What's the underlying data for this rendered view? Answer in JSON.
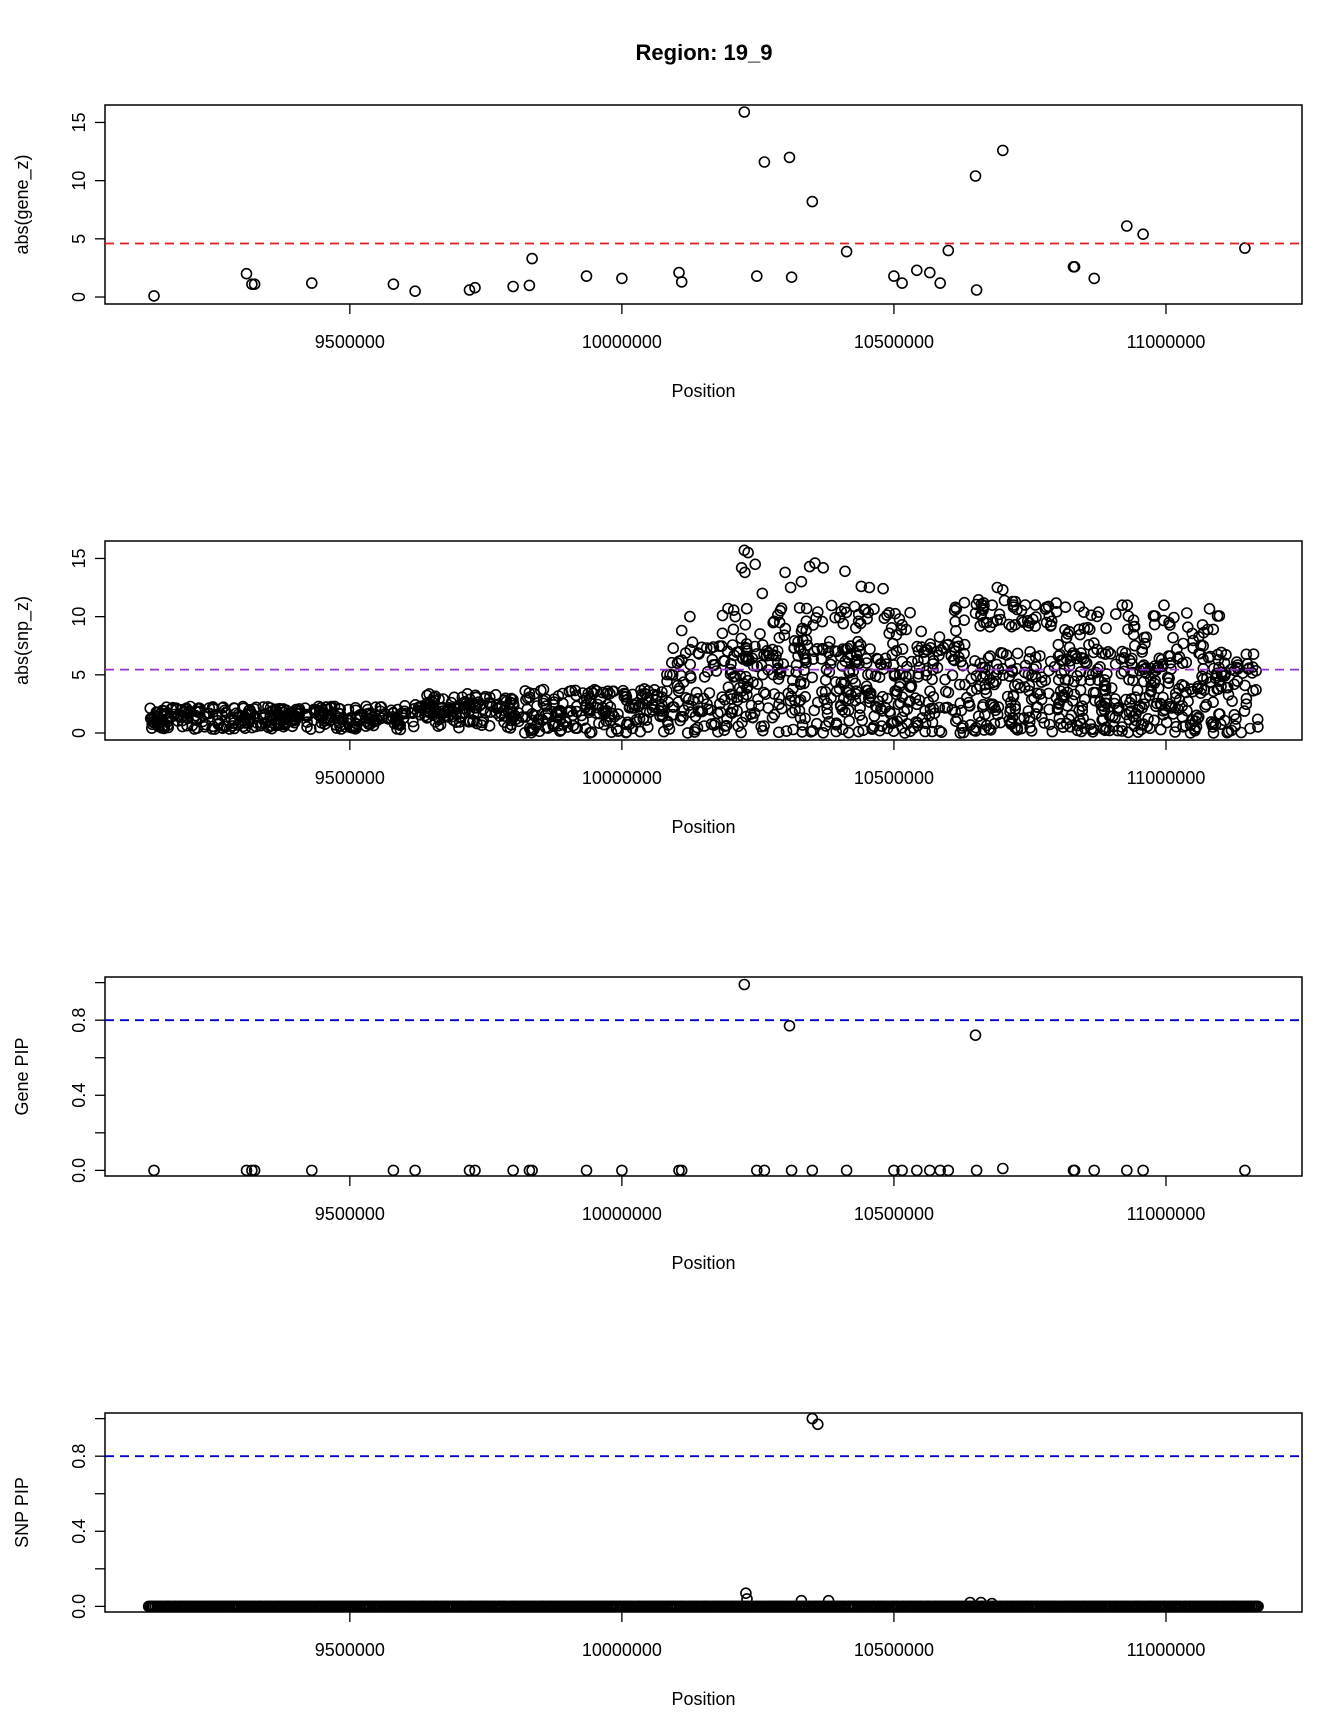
{
  "title": "Region: 19_9",
  "colors": {
    "point_stroke": "#000000",
    "red_line": "#e41a1c",
    "purple_line": "#9932cc",
    "blue_line": "#0000cc"
  },
  "chart_data": [
    {
      "type": "scatter",
      "name": "gene_z",
      "xlabel": "Position",
      "ylabel": "abs(gene_z)",
      "xlim": [
        9050000,
        11250000
      ],
      "ylim": [
        -0.6,
        16.5
      ],
      "xticks": [
        9500000,
        10000000,
        10500000,
        11000000
      ],
      "yticks": [
        0,
        5,
        10,
        15
      ],
      "threshold": {
        "value": 4.6,
        "color": "#e41a1c",
        "style": "dashed"
      },
      "points": [
        [
          9140000,
          0.1
        ],
        [
          9310000,
          2.0
        ],
        [
          9320000,
          1.1
        ],
        [
          9325000,
          1.1
        ],
        [
          9430000,
          1.2
        ],
        [
          9580000,
          1.1
        ],
        [
          9620000,
          0.5
        ],
        [
          9720000,
          0.6
        ],
        [
          9730000,
          0.8
        ],
        [
          9800000,
          0.9
        ],
        [
          9830000,
          1.0
        ],
        [
          9835000,
          3.3
        ],
        [
          9935000,
          1.8
        ],
        [
          10000000,
          1.6
        ],
        [
          10105000,
          2.1
        ],
        [
          10110000,
          1.3
        ],
        [
          10225000,
          15.9
        ],
        [
          10248000,
          1.8
        ],
        [
          10262000,
          11.6
        ],
        [
          10308000,
          12.0
        ],
        [
          10312000,
          1.7
        ],
        [
          10350000,
          8.2
        ],
        [
          10413000,
          3.9
        ],
        [
          10500000,
          1.8
        ],
        [
          10515000,
          1.2
        ],
        [
          10542000,
          2.3
        ],
        [
          10566000,
          2.1
        ],
        [
          10585000,
          1.2
        ],
        [
          10600000,
          4.0
        ],
        [
          10650000,
          10.4
        ],
        [
          10652000,
          0.6
        ],
        [
          10700000,
          12.6
        ],
        [
          10830000,
          2.6
        ],
        [
          10832000,
          2.6
        ],
        [
          10868000,
          1.6
        ],
        [
          10928000,
          6.1
        ],
        [
          10958000,
          5.4
        ],
        [
          11145000,
          4.2
        ]
      ]
    },
    {
      "type": "scatter",
      "name": "snp_z",
      "xlabel": "Position",
      "ylabel": "abs(snp_z)",
      "xlim": [
        9050000,
        11250000
      ],
      "ylim": [
        -0.6,
        16.5
      ],
      "xticks": [
        9500000,
        10000000,
        10500000,
        11000000
      ],
      "yticks": [
        0,
        5,
        10,
        15
      ],
      "threshold": {
        "value": 5.45,
        "color": "#9932cc",
        "style": "dashed"
      },
      "x_range": [
        9130000,
        11170000
      ],
      "peaks": [
        [
          10225000,
          15.7
        ],
        [
          10232000,
          15.5
        ],
        [
          10220000,
          14.2
        ],
        [
          10226000,
          13.8
        ],
        [
          10245000,
          14.5
        ],
        [
          10258000,
          12.0
        ],
        [
          10300000,
          13.8
        ],
        [
          10310000,
          12.5
        ],
        [
          10330000,
          13.0
        ],
        [
          10345000,
          14.3
        ],
        [
          10355000,
          14.6
        ],
        [
          10370000,
          14.2
        ],
        [
          10410000,
          13.9
        ],
        [
          10440000,
          12.6
        ],
        [
          10455000,
          12.5
        ],
        [
          10480000,
          12.4
        ],
        [
          10110000,
          8.8
        ],
        [
          10125000,
          10.0
        ],
        [
          10130000,
          7.8
        ],
        [
          10185000,
          10.1
        ],
        [
          10195000,
          10.7
        ],
        [
          10205000,
          8.9
        ],
        [
          10280000,
          9.6
        ],
        [
          10290000,
          9.5
        ],
        [
          10360000,
          10.4
        ],
        [
          10435000,
          9.6
        ],
        [
          10510000,
          9.8
        ],
        [
          10515000,
          9.3
        ],
        [
          10600000,
          7.6
        ],
        [
          10630000,
          7.6
        ],
        [
          10690000,
          12.5
        ],
        [
          10700000,
          12.3
        ],
        [
          10650000,
          10.3
        ],
        [
          10660000,
          10.2
        ],
        [
          10720000,
          11.0
        ],
        [
          10760000,
          11.0
        ],
        [
          10780000,
          10.8
        ],
        [
          10790000,
          9.6
        ],
        [
          10860000,
          8.9
        ],
        [
          10890000,
          9.0
        ],
        [
          10930000,
          8.9
        ],
        [
          10960000,
          8.2
        ],
        [
          11020000,
          7.2
        ],
        [
          11050000,
          7.3
        ]
      ]
    },
    {
      "type": "scatter",
      "name": "gene_pip",
      "xlabel": "Position",
      "ylabel": "Gene PIP",
      "xlim": [
        9050000,
        11250000
      ],
      "ylim": [
        -0.03,
        1.03
      ],
      "xticks": [
        9500000,
        10000000,
        10500000,
        11000000
      ],
      "yticks": [
        0.0,
        0.4,
        0.8
      ],
      "yticks_minor": [
        0.2,
        0.6,
        1.0
      ],
      "threshold": {
        "value": 0.8,
        "color": "#0000cc",
        "style": "dashed"
      },
      "points": [
        [
          9140000,
          0.0
        ],
        [
          9310000,
          0.0
        ],
        [
          9320000,
          0.0
        ],
        [
          9325000,
          0.0
        ],
        [
          9430000,
          0.0
        ],
        [
          9580000,
          0.0
        ],
        [
          9620000,
          0.0
        ],
        [
          9720000,
          0.0
        ],
        [
          9730000,
          0.0
        ],
        [
          9800000,
          0.0
        ],
        [
          9830000,
          0.0
        ],
        [
          9835000,
          0.0
        ],
        [
          9935000,
          0.0
        ],
        [
          10000000,
          0.0
        ],
        [
          10105000,
          0.0
        ],
        [
          10110000,
          0.0
        ],
        [
          10225000,
          0.99
        ],
        [
          10248000,
          0.0
        ],
        [
          10262000,
          0.0
        ],
        [
          10308000,
          0.77
        ],
        [
          10312000,
          0.0
        ],
        [
          10350000,
          0.0
        ],
        [
          10413000,
          0.0
        ],
        [
          10500000,
          0.0
        ],
        [
          10515000,
          0.0
        ],
        [
          10542000,
          0.0
        ],
        [
          10566000,
          0.0
        ],
        [
          10585000,
          0.0
        ],
        [
          10600000,
          0.0
        ],
        [
          10650000,
          0.72
        ],
        [
          10652000,
          0.0
        ],
        [
          10700000,
          0.01
        ],
        [
          10830000,
          0.0
        ],
        [
          10832000,
          0.0
        ],
        [
          10868000,
          0.0
        ],
        [
          10928000,
          0.0
        ],
        [
          10958000,
          0.0
        ],
        [
          11145000,
          0.0
        ]
      ]
    },
    {
      "type": "scatter",
      "name": "snp_pip",
      "xlabel": "Position",
      "ylabel": "SNP PIP",
      "xlim": [
        9050000,
        11250000
      ],
      "ylim": [
        -0.03,
        1.03
      ],
      "xticks": [
        9500000,
        10000000,
        10500000,
        11000000
      ],
      "yticks": [
        0.0,
        0.4,
        0.8
      ],
      "yticks_minor": [
        0.2,
        0.6,
        1.0
      ],
      "threshold": {
        "value": 0.8,
        "color": "#0000cc",
        "style": "dashed"
      },
      "x_range": [
        9130000,
        11170000
      ],
      "peaks": [
        [
          10350000,
          1.0
        ],
        [
          10360000,
          0.97
        ],
        [
          10228000,
          0.07
        ],
        [
          10230000,
          0.04
        ],
        [
          10330000,
          0.03
        ],
        [
          10380000,
          0.03
        ],
        [
          10640000,
          0.02
        ],
        [
          10660000,
          0.02
        ],
        [
          10680000,
          0.015
        ]
      ]
    }
  ]
}
